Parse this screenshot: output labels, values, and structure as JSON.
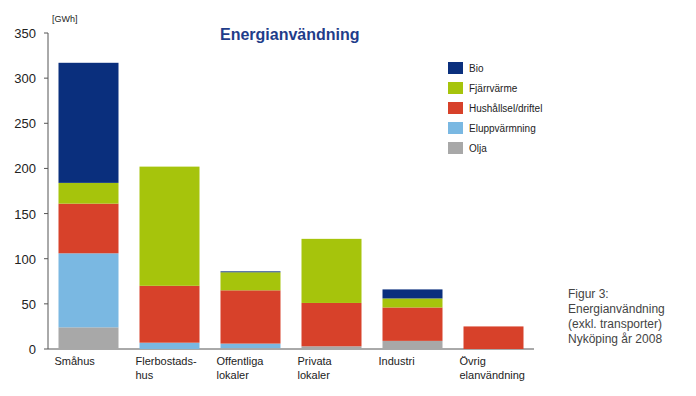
{
  "chart_data": {
    "type": "bar",
    "stacked": true,
    "title": "Energianvändning",
    "y_label": "[GWh]",
    "annotations": [
      "Figur 3:",
      "Energianvändning",
      "(exkl. transporter)",
      "Nyköping år 2008"
    ],
    "categories": [
      "Småhus",
      "Flerbostads-\nhus",
      "Offentliga\nlokaler",
      "Privata\nlokaler",
      "Industri",
      "Övrig\nelanvändning"
    ],
    "series": [
      {
        "name": "Olja",
        "color": "#a8a8a8",
        "values": [
          24,
          0,
          1,
          3,
          9,
          0
        ]
      },
      {
        "name": "Eluppvärmning",
        "color": "#7ab8e2",
        "values": [
          82,
          7,
          5,
          0,
          0,
          0
        ]
      },
      {
        "name": "Hushållsel/driftel",
        "color": "#d7412a",
        "values": [
          55,
          63,
          59,
          48,
          37,
          25
        ]
      },
      {
        "name": "Fjärrvärme",
        "color": "#a6c40c",
        "values": [
          23,
          132,
          20,
          71,
          10,
          0
        ]
      },
      {
        "name": "Bio",
        "color": "#0a2f7d",
        "values": [
          133,
          0,
          1,
          0,
          10,
          0
        ]
      }
    ],
    "ylim": [
      0,
      350
    ],
    "yticks": [
      0,
      50,
      100,
      150,
      200,
      250,
      300,
      350
    ],
    "grid": false,
    "legend": "upper right"
  }
}
